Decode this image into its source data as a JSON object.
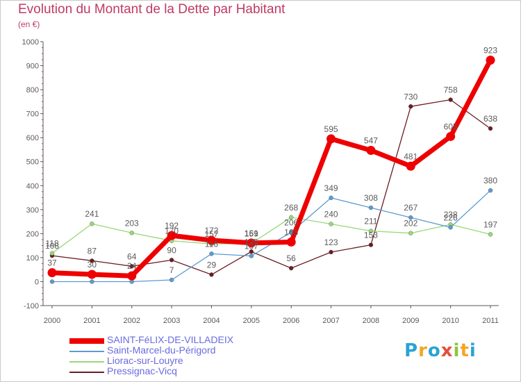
{
  "title": "Evolution du Montant de la Dette par Habitant",
  "subtitle": "(en €)",
  "logo": {
    "letters": [
      "P",
      "r",
      "o",
      "x",
      "i",
      "t",
      "i"
    ],
    "colors": [
      "#2aa3d5",
      "#f5a623",
      "#2aa3d5",
      "#e84c3d",
      "#8cc63f",
      "#f5a623",
      "#2aa3d5"
    ]
  },
  "colors": {
    "title": "#c03a63",
    "text": "#5a5a5a",
    "tick": "#c0304a",
    "grid": "#dddddd"
  },
  "chart_data": {
    "type": "line",
    "title": "Evolution du Montant de la Dette par Habitant",
    "subtitle": "(en €)",
    "xlabel": "",
    "ylabel": "",
    "categories": [
      "2000",
      "2001",
      "2002",
      "2003",
      "2004",
      "2005",
      "2006",
      "2007",
      "2008",
      "2009",
      "2010",
      "2011"
    ],
    "ylim": [
      -100,
      1000
    ],
    "yticks": [
      -100,
      0,
      100,
      200,
      300,
      400,
      500,
      600,
      700,
      800,
      900,
      1000
    ],
    "ytick_labels": [
      "-100",
      "0",
      "100",
      "200",
      "300",
      "400",
      "500",
      "600",
      "700",
      "800",
      "900",
      "1000"
    ],
    "grid": false,
    "legend": "bottom-left",
    "series": [
      {
        "name": "SAINT-FéLIX-DE-VILLADEIX",
        "color": "#ee0000",
        "width": 7,
        "values": [
          37,
          30,
          24,
          192,
          172,
          161,
          165,
          595,
          547,
          481,
          605,
          923
        ],
        "labels": [
          "37",
          "30",
          "24",
          "192",
          "172",
          "161",
          "165",
          "595",
          "547",
          "481",
          "605",
          "923"
        ]
      },
      {
        "name": "Saint-Marcel-du-Périgord",
        "color": "#5c9bd1",
        "width": 1.3,
        "values": [
          0,
          0,
          0,
          7,
          116,
          107,
          206,
          349,
          308,
          267,
          226,
          380
        ],
        "labels": [
          "",
          "",
          "",
          "7",
          "116",
          "107",
          "206",
          "349",
          "308",
          "267",
          "226",
          "380"
        ]
      },
      {
        "name": "Liorac-sur-Louyre",
        "color": "#98d977",
        "width": 1.3,
        "values": [
          118,
          241,
          203,
          170,
          157,
          159,
          268,
          240,
          211,
          202,
          238,
          197
        ],
        "labels": [
          "118",
          "241",
          "203",
          "170",
          "157",
          "159",
          "268",
          "240",
          "211",
          "202",
          "238",
          "197"
        ]
      },
      {
        "name": "Pressignac-Vicq",
        "color": "#6b1c22",
        "width": 1.3,
        "values": [
          108,
          87,
          64,
          90,
          29,
          125,
          56,
          123,
          153,
          730,
          758,
          638
        ],
        "labels": [
          "108",
          "87",
          "64",
          "90",
          "29",
          "125",
          "56",
          "123",
          "153",
          "730",
          "758",
          "638"
        ]
      }
    ]
  }
}
